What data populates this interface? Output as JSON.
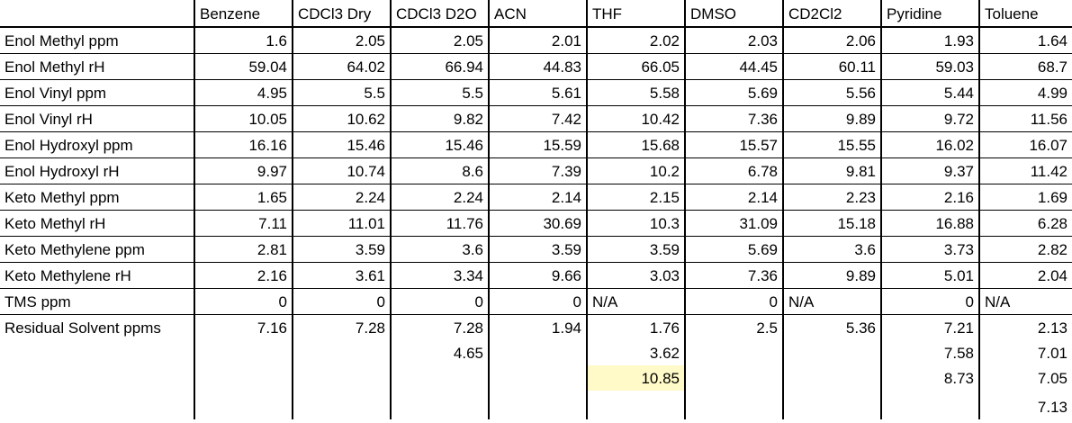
{
  "columns": [
    "",
    "Benzene",
    "CDCl3 Dry",
    "CDCl3 D2O",
    "ACN",
    "THF",
    "DMSO",
    "CD2Cl2",
    "Pyridine",
    "Toluene"
  ],
  "rows": [
    {
      "label": "Enol Methyl ppm",
      "values": [
        "1.6",
        "2.05",
        "2.05",
        "2.01",
        "2.02",
        "2.03",
        "2.06",
        "1.93",
        "1.64"
      ]
    },
    {
      "label": "Enol Methyl rH",
      "values": [
        "59.04",
        "64.02",
        "66.94",
        "44.83",
        "66.05",
        "44.45",
        "60.11",
        "59.03",
        "68.7"
      ]
    },
    {
      "label": "Enol Vinyl ppm",
      "values": [
        "4.95",
        "5.5",
        "5.5",
        "5.61",
        "5.58",
        "5.69",
        "5.56",
        "5.44",
        "4.99"
      ]
    },
    {
      "label": "Enol Vinyl rH",
      "values": [
        "10.05",
        "10.62",
        "9.82",
        "7.42",
        "10.42",
        "7.36",
        "9.89",
        "9.72",
        "11.56"
      ]
    },
    {
      "label": "Enol Hydroxyl ppm",
      "values": [
        "16.16",
        "15.46",
        "15.46",
        "15.59",
        "15.68",
        "15.57",
        "15.55",
        "16.02",
        "16.07"
      ]
    },
    {
      "label": "Enol Hydroxyl rH",
      "values": [
        "9.97",
        "10.74",
        "8.6",
        "7.39",
        "10.2",
        "6.78",
        "9.81",
        "9.37",
        "11.42"
      ]
    },
    {
      "label": "Keto Methyl ppm",
      "values": [
        "1.65",
        "2.24",
        "2.24",
        "2.14",
        "2.15",
        "2.14",
        "2.23",
        "2.16",
        "1.69"
      ]
    },
    {
      "label": "Keto Methyl rH",
      "values": [
        "7.11",
        "11.01",
        "11.76",
        "30.69",
        "10.3",
        "31.09",
        "15.18",
        "16.88",
        "6.28"
      ]
    },
    {
      "label": "Keto Methylene ppm",
      "values": [
        "2.81",
        "3.59",
        "3.6",
        "3.59",
        "3.59",
        "5.69",
        "3.6",
        "3.73",
        "2.82"
      ]
    },
    {
      "label": "Keto Methylene rH",
      "values": [
        "2.16",
        "3.61",
        "3.34",
        "9.66",
        "3.03",
        "7.36",
        "9.89",
        "5.01",
        "2.04"
      ]
    },
    {
      "label": "TMS ppm",
      "values": [
        "0",
        "0",
        "0",
        "0",
        "N/A",
        "0",
        "N/A",
        "0",
        "N/A"
      ]
    },
    {
      "label": "Residual Solvent ppms",
      "values": [
        "7.16",
        "7.28",
        "7.28",
        "1.94",
        "1.76",
        "2.5",
        "5.36",
        "7.21",
        "2.13"
      ]
    },
    {
      "label": "",
      "values": [
        "",
        "",
        "4.65",
        "",
        "3.62",
        "",
        "",
        "7.58",
        "7.01"
      ]
    },
    {
      "label": "",
      "values": [
        "",
        "",
        "",
        "",
        "10.85",
        "",
        "",
        "8.73",
        "7.05"
      ]
    },
    {
      "label": "",
      "values": [
        "",
        "",
        "",
        "",
        "",
        "",
        "",
        "",
        "7.13"
      ]
    }
  ],
  "highlight_color": "#fffac8"
}
